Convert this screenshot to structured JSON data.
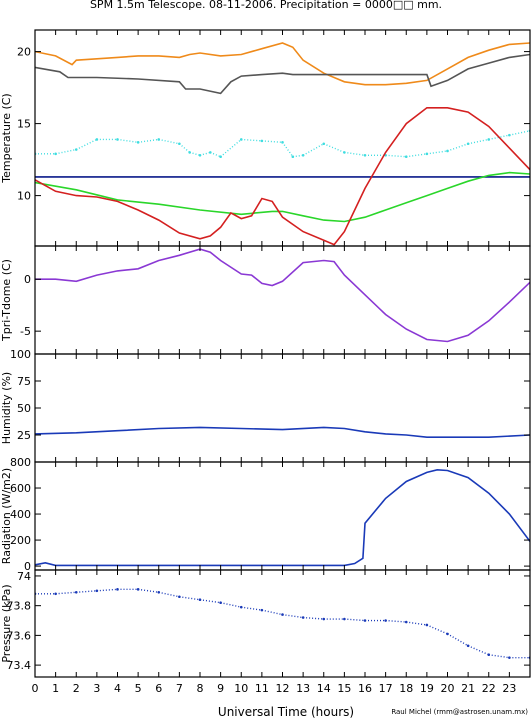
{
  "title": "SPM 1.5m Telescope. 08-11-2006. Precipitation = 0000□□ mm.",
  "credit": "Raul Michel (rmm@astrosen.unam.mx)",
  "chart_data": {
    "type": "line",
    "x_label": "Universal Time (hours)",
    "x_range": [
      0,
      24
    ],
    "x_ticks": [
      "0",
      "1",
      "2",
      "3",
      "4",
      "5",
      "6",
      "7",
      "8",
      "9",
      "10",
      "11",
      "12",
      "13",
      "14",
      "15",
      "16",
      "17",
      "18",
      "19",
      "20",
      "21",
      "22",
      "23"
    ],
    "panels": [
      {
        "ylabel": "Temperature (C)",
        "ylim": [
          6.5,
          21.5
        ],
        "yticks": [
          10,
          15,
          20
        ],
        "ytick_labels": [
          "10",
          "15",
          "20"
        ],
        "series": [
          {
            "color": "#ef8a1a",
            "style": "line",
            "points": [
              [
                0,
                20
              ],
              [
                1,
                19.7
              ],
              [
                1.8,
                19.1
              ],
              [
                2,
                19.4
              ],
              [
                3,
                19.5
              ],
              [
                4,
                19.6
              ],
              [
                5,
                19.7
              ],
              [
                6,
                19.7
              ],
              [
                7,
                19.6
              ],
              [
                7.5,
                19.8
              ],
              [
                8,
                19.9
              ],
              [
                9,
                19.7
              ],
              [
                10,
                19.8
              ],
              [
                11,
                20.2
              ],
              [
                12,
                20.6
              ],
              [
                12.5,
                20.3
              ],
              [
                13,
                19.4
              ],
              [
                14,
                18.5
              ],
              [
                15,
                17.9
              ],
              [
                16,
                17.7
              ],
              [
                17,
                17.7
              ],
              [
                18,
                17.8
              ],
              [
                19,
                18.0
              ],
              [
                20,
                18.8
              ],
              [
                21,
                19.6
              ],
              [
                22,
                20.1
              ],
              [
                23,
                20.5
              ],
              [
                24,
                20.6
              ]
            ]
          },
          {
            "color": "#555555",
            "style": "line",
            "points": [
              [
                0,
                18.9
              ],
              [
                1.2,
                18.6
              ],
              [
                1.6,
                18.2
              ],
              [
                3,
                18.2
              ],
              [
                5,
                18.1
              ],
              [
                7,
                17.9
              ],
              [
                7.3,
                17.4
              ],
              [
                8,
                17.4
              ],
              [
                9,
                17.1
              ],
              [
                9.5,
                17.9
              ],
              [
                10,
                18.3
              ],
              [
                11,
                18.4
              ],
              [
                12,
                18.5
              ],
              [
                12.5,
                18.4
              ],
              [
                19,
                18.4
              ],
              [
                19.2,
                17.6
              ],
              [
                20,
                18.0
              ],
              [
                21,
                18.8
              ],
              [
                22,
                19.2
              ],
              [
                23,
                19.6
              ],
              [
                24,
                19.8
              ]
            ]
          },
          {
            "color": "#3fdde0",
            "style": "dots",
            "points": [
              [
                0,
                12.9
              ],
              [
                1,
                12.9
              ],
              [
                2,
                13.2
              ],
              [
                3,
                13.9
              ],
              [
                4,
                13.9
              ],
              [
                5,
                13.7
              ],
              [
                6,
                13.9
              ],
              [
                7,
                13.6
              ],
              [
                7.5,
                13.0
              ],
              [
                8,
                12.8
              ],
              [
                8.5,
                13.0
              ],
              [
                9,
                12.7
              ],
              [
                10,
                13.9
              ],
              [
                11,
                13.8
              ],
              [
                12,
                13.7
              ],
              [
                12.5,
                12.7
              ],
              [
                13,
                12.8
              ],
              [
                14,
                13.6
              ],
              [
                15,
                13.0
              ],
              [
                16,
                12.8
              ],
              [
                17,
                12.8
              ],
              [
                18,
                12.7
              ],
              [
                19,
                12.9
              ],
              [
                20,
                13.1
              ],
              [
                21,
                13.6
              ],
              [
                22,
                13.9
              ],
              [
                23,
                14.2
              ],
              [
                24,
                14.5
              ]
            ]
          },
          {
            "color": "#0a1a8a",
            "style": "line",
            "points": [
              [
                0,
                11.3
              ],
              [
                24,
                11.3
              ]
            ]
          },
          {
            "color": "#2ad62a",
            "style": "line",
            "points": [
              [
                0,
                10.9
              ],
              [
                2,
                10.4
              ],
              [
                4,
                9.7
              ],
              [
                6,
                9.4
              ],
              [
                8,
                9.0
              ],
              [
                10,
                8.7
              ],
              [
                11.5,
                8.9
              ],
              [
                12,
                8.9
              ],
              [
                13,
                8.6
              ],
              [
                14,
                8.3
              ],
              [
                15,
                8.2
              ],
              [
                16,
                8.5
              ],
              [
                17,
                9.0
              ],
              [
                18,
                9.5
              ],
              [
                19,
                10.0
              ],
              [
                20,
                10.5
              ],
              [
                21,
                11.0
              ],
              [
                22,
                11.4
              ],
              [
                23,
                11.6
              ],
              [
                24,
                11.5
              ]
            ]
          },
          {
            "color": "#d42020",
            "style": "line",
            "points": [
              [
                0,
                11.1
              ],
              [
                1,
                10.3
              ],
              [
                2,
                10.0
              ],
              [
                3,
                9.9
              ],
              [
                4,
                9.6
              ],
              [
                5,
                9.0
              ],
              [
                6,
                8.3
              ],
              [
                7,
                7.4
              ],
              [
                8,
                7.0
              ],
              [
                8.5,
                7.2
              ],
              [
                9,
                7.8
              ],
              [
                9.5,
                8.8
              ],
              [
                10,
                8.4
              ],
              [
                10.5,
                8.6
              ],
              [
                11,
                9.8
              ],
              [
                11.5,
                9.6
              ],
              [
                12,
                8.5
              ],
              [
                13,
                7.5
              ],
              [
                14,
                6.9
              ],
              [
                14.5,
                6.6
              ],
              [
                15,
                7.5
              ],
              [
                16,
                10.5
              ],
              [
                17,
                13.0
              ],
              [
                18,
                15.0
              ],
              [
                19,
                16.1
              ],
              [
                20,
                16.1
              ],
              [
                21,
                15.8
              ],
              [
                22,
                14.8
              ],
              [
                23,
                13.3
              ],
              [
                24,
                11.8
              ]
            ]
          }
        ]
      },
      {
        "ylabel": "Tpri-Tdome (C)",
        "ylim": [
          -7.2,
          3.2
        ],
        "yticks": [
          -5,
          0
        ],
        "ytick_labels": [
          "-5",
          "0"
        ],
        "series": [
          {
            "color": "#8a38d4",
            "style": "line",
            "points": [
              [
                0,
                0.0
              ],
              [
                1,
                0.0
              ],
              [
                2,
                -0.2
              ],
              [
                3,
                0.4
              ],
              [
                4,
                0.8
              ],
              [
                5,
                1.0
              ],
              [
                6,
                1.8
              ],
              [
                7,
                2.3
              ],
              [
                8,
                2.9
              ],
              [
                8.5,
                2.6
              ],
              [
                9,
                1.8
              ],
              [
                10,
                0.5
              ],
              [
                10.5,
                0.4
              ],
              [
                11,
                -0.4
              ],
              [
                11.5,
                -0.6
              ],
              [
                12,
                -0.2
              ],
              [
                13,
                1.6
              ],
              [
                14,
                1.8
              ],
              [
                14.5,
                1.7
              ],
              [
                15,
                0.4
              ],
              [
                16,
                -1.5
              ],
              [
                17,
                -3.4
              ],
              [
                18,
                -4.8
              ],
              [
                19,
                -5.8
              ],
              [
                20,
                -6.0
              ],
              [
                21,
                -5.4
              ],
              [
                22,
                -4.0
              ],
              [
                23,
                -2.2
              ],
              [
                24,
                -0.3
              ]
            ]
          }
        ]
      },
      {
        "ylabel": "Humidity (%)",
        "ylim": [
          0,
          100
        ],
        "yticks": [
          25,
          50,
          75,
          100
        ],
        "ytick_labels": [
          "25",
          "50",
          "75",
          "100"
        ],
        "series": [
          {
            "color": "#1a3ab8",
            "style": "line",
            "points": [
              [
                0,
                26
              ],
              [
                2,
                27
              ],
              [
                4,
                29
              ],
              [
                6,
                31
              ],
              [
                8,
                32
              ],
              [
                10,
                31
              ],
              [
                12,
                30
              ],
              [
                14,
                32
              ],
              [
                15,
                31
              ],
              [
                16,
                28
              ],
              [
                17,
                26
              ],
              [
                18,
                25
              ],
              [
                19,
                23
              ],
              [
                20,
                23
              ],
              [
                22,
                23
              ],
              [
                24,
                25
              ]
            ]
          }
        ]
      },
      {
        "ylabel": "Radiation (W/m2)",
        "ylim": [
          -30,
          800
        ],
        "yticks": [
          0,
          200,
          400,
          600,
          800
        ],
        "ytick_labels": [
          "0",
          "200",
          "400",
          "600",
          "800"
        ],
        "series": [
          {
            "color": "#1a3ab8",
            "style": "line",
            "points": [
              [
                0,
                10
              ],
              [
                0.5,
                25
              ],
              [
                1,
                5
              ],
              [
                6,
                5
              ],
              [
                12,
                5
              ],
              [
                15,
                5
              ],
              [
                15.5,
                20
              ],
              [
                15.9,
                60
              ],
              [
                16,
                330
              ],
              [
                17,
                520
              ],
              [
                18,
                650
              ],
              [
                19,
                720
              ],
              [
                19.5,
                740
              ],
              [
                20,
                735
              ],
              [
                21,
                680
              ],
              [
                22,
                560
              ],
              [
                23,
                400
              ],
              [
                24,
                190
              ]
            ]
          }
        ]
      },
      {
        "ylabel": "Pressure (kPa)",
        "ylim": [
          73.32,
          74.04
        ],
        "yticks": [
          73.4,
          73.6,
          73.8,
          74.0
        ],
        "ytick_labels": [
          "73.4",
          "73.6",
          "73.8",
          "74"
        ],
        "series": [
          {
            "color": "#1a3ab8",
            "style": "dots",
            "points": [
              [
                0,
                73.88
              ],
              [
                1,
                73.88
              ],
              [
                2,
                73.89
              ],
              [
                3,
                73.9
              ],
              [
                4,
                73.91
              ],
              [
                5,
                73.91
              ],
              [
                6,
                73.89
              ],
              [
                7,
                73.86
              ],
              [
                8,
                73.84
              ],
              [
                9,
                73.82
              ],
              [
                10,
                73.79
              ],
              [
                11,
                73.77
              ],
              [
                12,
                73.74
              ],
              [
                13,
                73.72
              ],
              [
                14,
                73.71
              ],
              [
                15,
                73.71
              ],
              [
                16,
                73.7
              ],
              [
                17,
                73.7
              ],
              [
                18,
                73.69
              ],
              [
                19,
                73.67
              ],
              [
                20,
                73.61
              ],
              [
                21,
                73.53
              ],
              [
                22,
                73.47
              ],
              [
                23,
                73.45
              ],
              [
                24,
                73.45
              ]
            ]
          }
        ]
      }
    ]
  }
}
